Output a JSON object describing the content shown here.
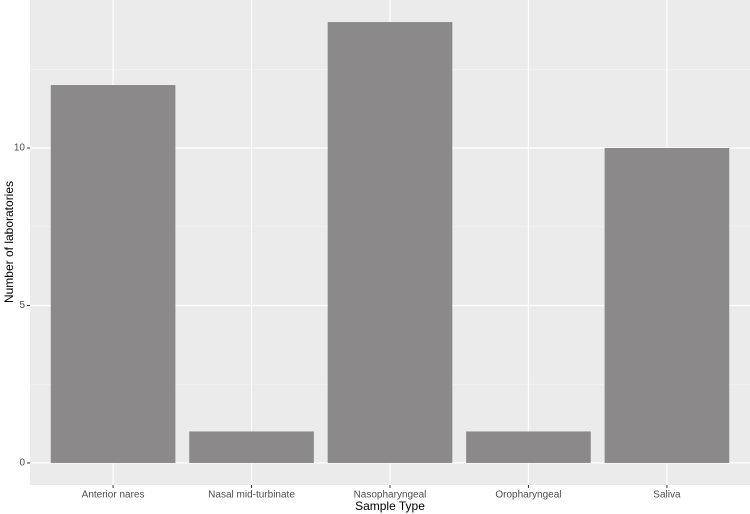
{
  "chart_data": {
    "type": "bar",
    "x_label": "Sample Type",
    "y_label": "Number of laboratories",
    "categories": [
      "Anterior nares",
      "Nasal mid-turbinate",
      "Nasopharyngeal",
      "Oropharyngeal",
      "Saliva"
    ],
    "values": [
      12,
      1,
      14,
      1,
      10
    ],
    "color": "#8b8989",
    "ylim": [
      -0.7,
      14.7
    ],
    "yticks": [
      0,
      5,
      10
    ],
    "minor_yticks": [
      2.5,
      7.5,
      12.5
    ],
    "grid": true
  }
}
